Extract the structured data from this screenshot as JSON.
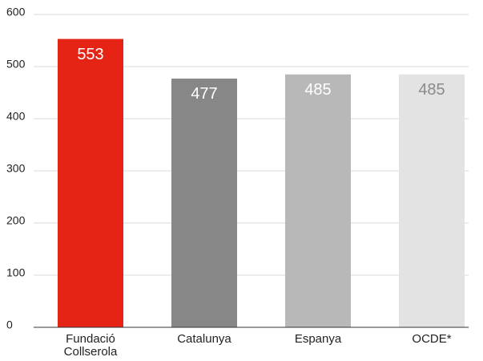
{
  "chart_data": {
    "type": "bar",
    "categories": [
      "Fundació Collserola",
      "Catalunya",
      "Espanya",
      "OCDE*"
    ],
    "values": [
      553,
      477,
      485,
      485
    ],
    "colors": [
      "#e52416",
      "#878787",
      "#b8b8b8",
      "#e3e3e3"
    ],
    "label_colors": [
      "#ffffff",
      "#ffffff",
      "#ffffff",
      "#8a8a8a"
    ],
    "ylim": [
      0,
      600
    ],
    "yticks": [
      0,
      100,
      200,
      300,
      400,
      500,
      600
    ],
    "grid": true
  }
}
